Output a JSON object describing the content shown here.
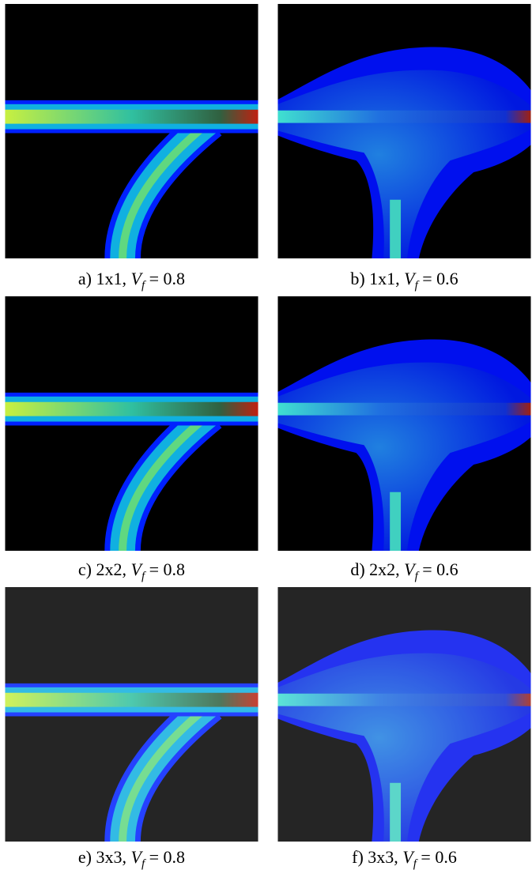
{
  "panels": [
    {
      "label": "a) 1x1,",
      "variable": "V",
      "subscript": "f",
      "value": "= 0.8"
    },
    {
      "label": "b) 1x1,",
      "variable": "V",
      "subscript": "f",
      "value": "= 0.6"
    },
    {
      "label": "c) 2x2,",
      "variable": "V",
      "subscript": "f",
      "value": "= 0.8"
    },
    {
      "label": "d) 2x2,",
      "variable": "V",
      "subscript": "f",
      "value": "= 0.6"
    },
    {
      "label": "e) 3x3,",
      "variable": "V",
      "subscript": "f",
      "value": "= 0.8"
    },
    {
      "label": "f) 3x3,",
      "variable": "V",
      "subscript": "f",
      "value": "= 0.6"
    }
  ]
}
